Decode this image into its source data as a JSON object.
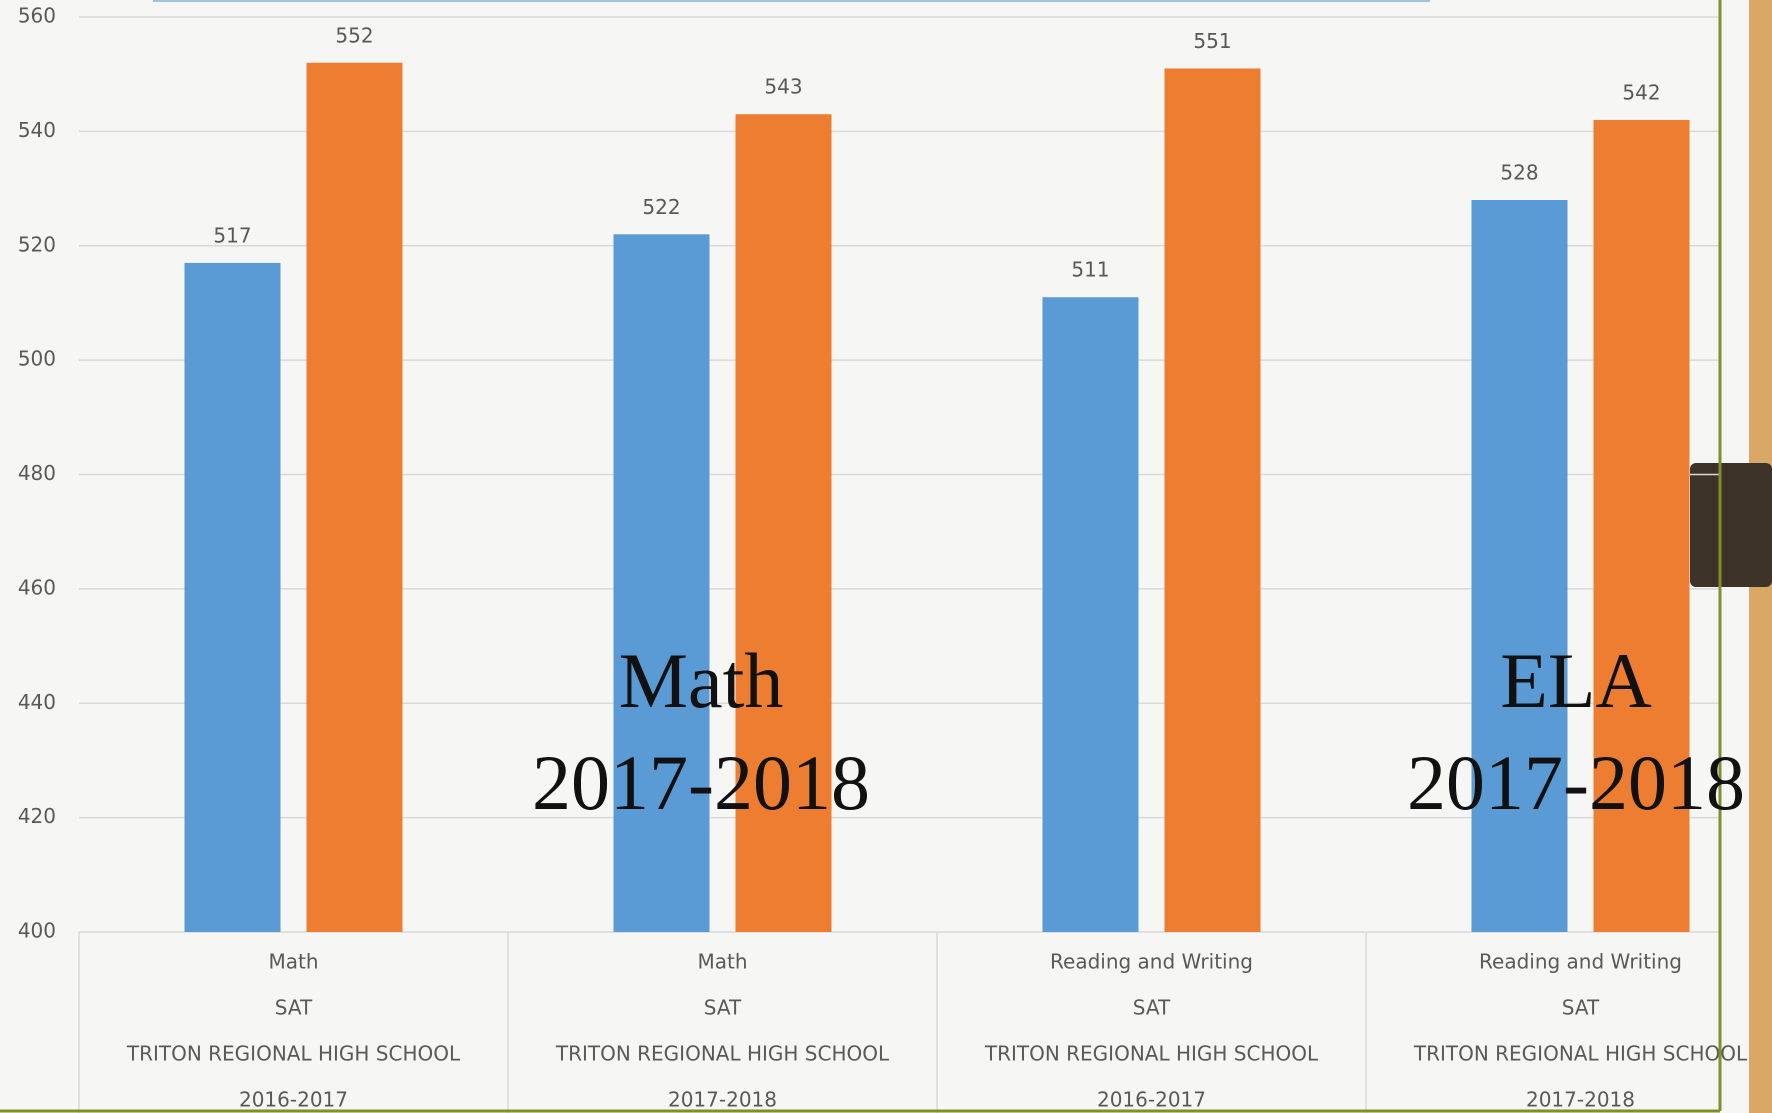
{
  "chart_data": {
    "type": "bar",
    "categories": [
      [
        "Math",
        "SAT",
        "TRITON REGIONAL HIGH SCHOOL",
        "2016-2017"
      ],
      [
        "Math",
        "SAT",
        "TRITON REGIONAL HIGH SCHOOL",
        "2017-2018"
      ],
      [
        "Reading and Writing",
        "SAT",
        "TRITON REGIONAL HIGH SCHOOL",
        "2016-2017"
      ],
      [
        "Reading and Writing",
        "SAT",
        "TRITON REGIONAL HIGH SCHOOL",
        "2017-2018"
      ]
    ],
    "series": [
      {
        "color": "#5b9bd5",
        "values": [
          517,
          522,
          511,
          528
        ]
      },
      {
        "color": "#ed7d31",
        "values": [
          552,
          543,
          551,
          542
        ]
      }
    ],
    "ylim": [
      400,
      560
    ],
    "yticks": [
      400,
      420,
      440,
      460,
      480,
      500,
      520,
      540,
      560
    ],
    "grid": true,
    "annotations": [
      [
        "Math",
        "2017-2018"
      ],
      [
        "ELA",
        "2017-2018"
      ]
    ]
  }
}
